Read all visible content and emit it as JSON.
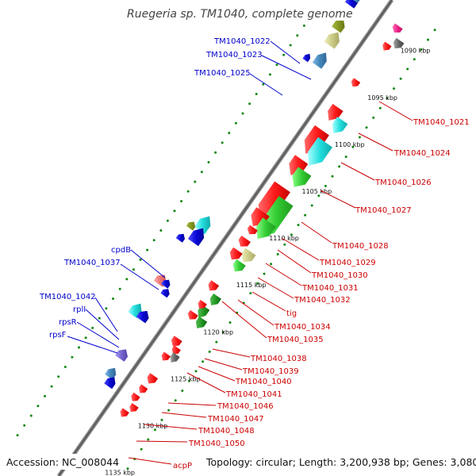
{
  "title": "Ruegeria sp. TM1040, complete genome",
  "footer": {
    "accession": "Accession: NC_008044",
    "stats": "Topology: circular; Length: 3,200,938 bp; Genes: 3,080"
  },
  "colors": {
    "red": "#ff1515",
    "blue": "#0a0ad8",
    "green": "#33cc33",
    "darkgreen": "#229922",
    "cyan": "#22dddd",
    "tan": "#cccc88",
    "olive": "#889922",
    "steel": "#4488bb",
    "gray": "#666666",
    "pink": "#ee7777",
    "violet": "#7766cc",
    "magenta": "#ee2288",
    "label_blue": "#0000cc",
    "label_red": "#cc0000"
  },
  "ticks": [
    {
      "label": "1090 kbp",
      "kbp": 1090
    },
    {
      "label": "1095 kbp",
      "kbp": 1095
    },
    {
      "label": "1100 kbp",
      "kbp": 1100
    },
    {
      "label": "1105 kbp",
      "kbp": 1105
    },
    {
      "label": "1110 kbp",
      "kbp": 1110
    },
    {
      "label": "1115 kbp",
      "kbp": 1115
    },
    {
      "label": "1120 kbp",
      "kbp": 1120
    },
    {
      "label": "1125 kbp",
      "kbp": 1125
    },
    {
      "label": "1130 kbp",
      "kbp": 1130
    },
    {
      "label": "1135 kbp",
      "kbp": 1135
    }
  ],
  "genes": [
    {
      "name": "TM1040_1022",
      "strand": "+",
      "color": "olive"
    },
    {
      "name": "TM1040_1023",
      "strand": "+",
      "color": "tan"
    },
    {
      "name": "TM1040_1025",
      "strand": "+",
      "color": "blue"
    },
    {
      "name": "cpdB",
      "strand": "+",
      "color": "cyan"
    },
    {
      "name": "TM1040_1037",
      "strand": "+",
      "color": "olive"
    },
    {
      "name": "TM1040_1042",
      "strand": "+",
      "color": "pink"
    },
    {
      "name": "rplI",
      "strand": "+",
      "color": "blue"
    },
    {
      "name": "rpsR",
      "strand": "+",
      "color": "blue"
    },
    {
      "name": "rpsF",
      "strand": "+",
      "color": "blue"
    },
    {
      "name": "TM1040_1021",
      "strand": "-",
      "color": "red"
    },
    {
      "name": "TM1040_1024",
      "strand": "-",
      "color": "cyan"
    },
    {
      "name": "TM1040_1026",
      "strand": "-",
      "color": "cyan"
    },
    {
      "name": "TM1040_1027",
      "strand": "-",
      "color": "green"
    },
    {
      "name": "TM1040_1028",
      "strand": "-",
      "color": "green"
    },
    {
      "name": "TM1040_1029",
      "strand": "-",
      "color": "red"
    },
    {
      "name": "TM1040_1030",
      "strand": "-",
      "color": "red"
    },
    {
      "name": "TM1040_1031",
      "strand": "-",
      "color": "red"
    },
    {
      "name": "TM1040_1032",
      "strand": "-",
      "color": "tan"
    },
    {
      "name": "tig",
      "strand": "-",
      "color": "green"
    },
    {
      "name": "TM1040_1034",
      "strand": "-",
      "color": "red"
    },
    {
      "name": "TM1040_1035",
      "strand": "-",
      "color": "red"
    },
    {
      "name": "TM1040_1038",
      "strand": "-",
      "color": "darkgreen"
    },
    {
      "name": "TM1040_1039",
      "strand": "-",
      "color": "darkgreen"
    },
    {
      "name": "TM1040_1040",
      "strand": "-",
      "color": "red"
    },
    {
      "name": "TM1040_1041",
      "strand": "-",
      "color": "red"
    },
    {
      "name": "TM1040_1046",
      "strand": "-",
      "color": "gray"
    },
    {
      "name": "TM1040_1047",
      "strand": "-",
      "color": "red"
    },
    {
      "name": "TM1040_1048",
      "strand": "-",
      "color": "violet"
    },
    {
      "name": "TM1040_1050",
      "strand": "-",
      "color": "red"
    },
    {
      "name": "acpP",
      "strand": "-",
      "color": "red"
    }
  ]
}
